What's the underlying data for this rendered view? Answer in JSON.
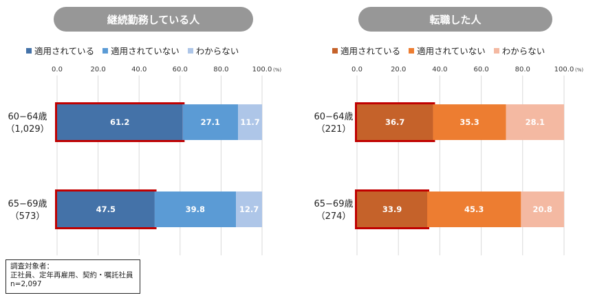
{
  "chart_data": [
    {
      "type": "bar",
      "orientation": "horizontal",
      "stacked": true,
      "title": "継続勤務している人",
      "unit": "(%)",
      "xlim": [
        0,
        100
      ],
      "ticks": [
        "0.0",
        "20.0",
        "40.0",
        "60.0",
        "80.0",
        "100.0"
      ],
      "tick_values": [
        0,
        20,
        40,
        60,
        80,
        100
      ],
      "categories": [
        {
          "label": "60−64歳",
          "n": "（1,029）"
        },
        {
          "label": "65−69歳",
          "n": "（573）"
        }
      ],
      "series": [
        {
          "name": "適用されている",
          "color": "#4472a8",
          "values": [
            61.2,
            47.5
          ],
          "labels": [
            "61.2",
            "47.5"
          ],
          "label_color": "#ffffff"
        },
        {
          "name": "適用されていない",
          "color": "#5b9bd5",
          "values": [
            27.1,
            39.8
          ],
          "labels": [
            "27.1",
            "39.8"
          ],
          "label_color": "#ffffff"
        },
        {
          "name": "わからない",
          "color": "#aec6e8",
          "values": [
            11.7,
            12.7
          ],
          "labels": [
            "11.7",
            "12.7"
          ],
          "label_color": "#ffffff"
        }
      ],
      "highlight": {
        "series": 0,
        "color": "#c00000"
      },
      "grid": true,
      "legend_position": "top"
    },
    {
      "type": "bar",
      "orientation": "horizontal",
      "stacked": true,
      "title": "転職した人",
      "unit": "(%)",
      "xlim": [
        0,
        100
      ],
      "ticks": [
        "0.0",
        "20.0",
        "40.0",
        "60.0",
        "80.0",
        "100.0"
      ],
      "tick_values": [
        0,
        20,
        40,
        60,
        80,
        100
      ],
      "categories": [
        {
          "label": "60−64歳",
          "n": "（221）"
        },
        {
          "label": "65−69歳",
          "n": "（274）"
        }
      ],
      "series": [
        {
          "name": "適用されている",
          "color": "#c5622a",
          "values": [
            36.7,
            33.9
          ],
          "labels": [
            "36.7",
            "33.9"
          ],
          "label_color": "#ffffff"
        },
        {
          "name": "適用されていない",
          "color": "#ed7d31",
          "values": [
            35.3,
            45.3
          ],
          "labels": [
            "35.3",
            "45.3"
          ],
          "label_color": "#ffffff"
        },
        {
          "name": "わからない",
          "color": "#f4b9a2",
          "values": [
            28.1,
            20.8
          ],
          "labels": [
            "28.1",
            "20.8"
          ],
          "label_color": "#ffffff"
        }
      ],
      "highlight": {
        "series": 0,
        "color": "#c00000"
      },
      "grid": true,
      "legend_position": "top"
    }
  ],
  "note": {
    "line1": "調査対象者：",
    "line2": "正社員、定年再雇用、契約・嘱託社員",
    "line3": "n=2,097"
  }
}
